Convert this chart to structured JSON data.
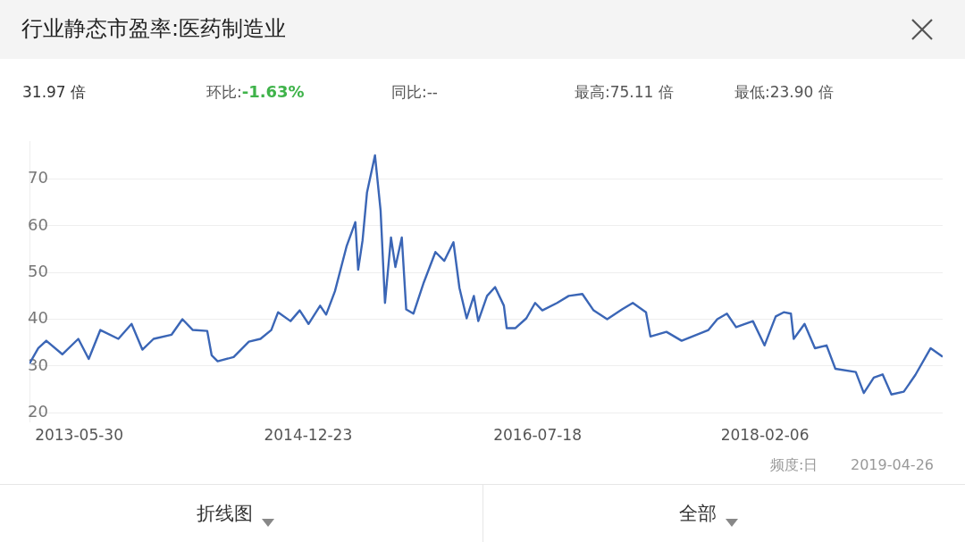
{
  "chart_data": {
    "type": "line",
    "title": "行业静态市盈率:医药制造业",
    "annotations": [
      "31.97 倍",
      "环比:",
      "-1.63%",
      "同比:--",
      "最高:75.11 倍",
      "最低:23.90 倍",
      "频度:日",
      "2019-04-26",
      "折线图",
      "全部"
    ],
    "x": [
      "2013-01-26",
      "2013-02-17",
      "2013-03-09",
      "2013-04-18",
      "2013-05-28",
      "2013-06-23",
      "2013-07-22",
      "2013-09-05",
      "2013-10-08",
      "2013-11-04",
      "2013-12-02",
      "2014-01-16",
      "2014-02-12",
      "2014-03-10",
      "2014-04-15",
      "2014-04-26",
      "2014-05-11",
      "2014-06-20",
      "2014-07-28",
      "2014-08-26",
      "2014-09-22",
      "2014-10-09",
      "2014-11-09",
      "2014-12-02",
      "2014-12-24",
      "2015-01-22",
      "2015-02-06",
      "2015-02-28",
      "2015-03-29",
      "2015-04-20",
      "2015-04-27",
      "2015-05-08",
      "2015-05-19",
      "2015-06-08",
      "2015-06-22",
      "2015-07-03",
      "2015-07-18",
      "2015-07-29",
      "2015-08-14",
      "2015-08-25",
      "2015-09-12",
      "2015-10-08",
      "2015-11-06",
      "2015-11-28",
      "2015-12-21",
      "2016-01-05",
      "2016-01-23",
      "2016-02-10",
      "2016-02-21",
      "2016-03-14",
      "2016-04-03",
      "2016-04-25",
      "2016-05-02",
      "2016-05-24",
      "2016-06-20",
      "2016-07-12",
      "2016-07-30",
      "2016-09-05",
      "2016-10-04",
      "2016-11-07",
      "2016-12-05",
      "2017-01-08",
      "2017-02-14",
      "2017-03-13",
      "2017-04-15",
      "2017-04-26",
      "2017-06-05",
      "2017-07-13",
      "2017-09-18",
      "2017-10-10",
      "2017-11-03",
      "2017-11-26",
      "2018-01-07",
      "2018-02-05",
      "2018-03-05",
      "2018-03-25",
      "2018-04-12",
      "2018-04-19",
      "2018-05-16",
      "2018-06-11",
      "2018-07-10",
      "2018-08-01",
      "2018-09-21",
      "2018-10-11",
      "2018-11-05",
      "2018-11-27",
      "2018-12-19",
      "2019-01-19",
      "2019-02-17",
      "2019-03-27",
      "2019-04-26"
    ],
    "series": [
      {
        "color": "#3b66b6",
        "values": [
          30.5,
          33.8,
          35.4,
          32.5,
          35.8,
          31.5,
          37.7,
          35.8,
          39.0,
          33.5,
          35.8,
          36.7,
          40.0,
          37.7,
          37.5,
          32.3,
          31.0,
          31.9,
          35.2,
          35.8,
          37.7,
          41.5,
          39.6,
          41.9,
          39.0,
          42.9,
          41.0,
          46.0,
          55.6,
          60.8,
          50.6,
          56.9,
          67.1,
          75.11,
          63.3,
          43.5,
          57.5,
          51.2,
          57.5,
          42.1,
          41.2,
          47.9,
          54.4,
          52.5,
          56.5,
          46.7,
          40.2,
          45.0,
          39.6,
          45.0,
          46.9,
          42.9,
          38.1,
          38.1,
          40.2,
          43.5,
          41.9,
          43.5,
          45.0,
          45.4,
          41.9,
          40.0,
          42.1,
          43.5,
          41.5,
          36.3,
          37.3,
          35.4,
          37.7,
          40.0,
          41.2,
          38.3,
          39.6,
          34.4,
          40.6,
          41.5,
          41.2,
          35.8,
          39.0,
          33.8,
          34.4,
          29.4,
          28.7,
          24.2,
          27.5,
          28.2,
          23.9,
          24.5,
          28.1,
          33.8,
          31.97
        ]
      }
    ],
    "xlim": [
      "2013-01-26",
      "2019-04-26"
    ],
    "xticks": [
      "2013-05-30",
      "2014-12-23",
      "2016-07-18",
      "2018-02-06"
    ],
    "ylim": [
      18,
      78
    ],
    "yticks": [
      20,
      30,
      40,
      50,
      60,
      70
    ],
    "grid": "y",
    "legend": false,
    "marker": "none",
    "line_style": "solid"
  }
}
